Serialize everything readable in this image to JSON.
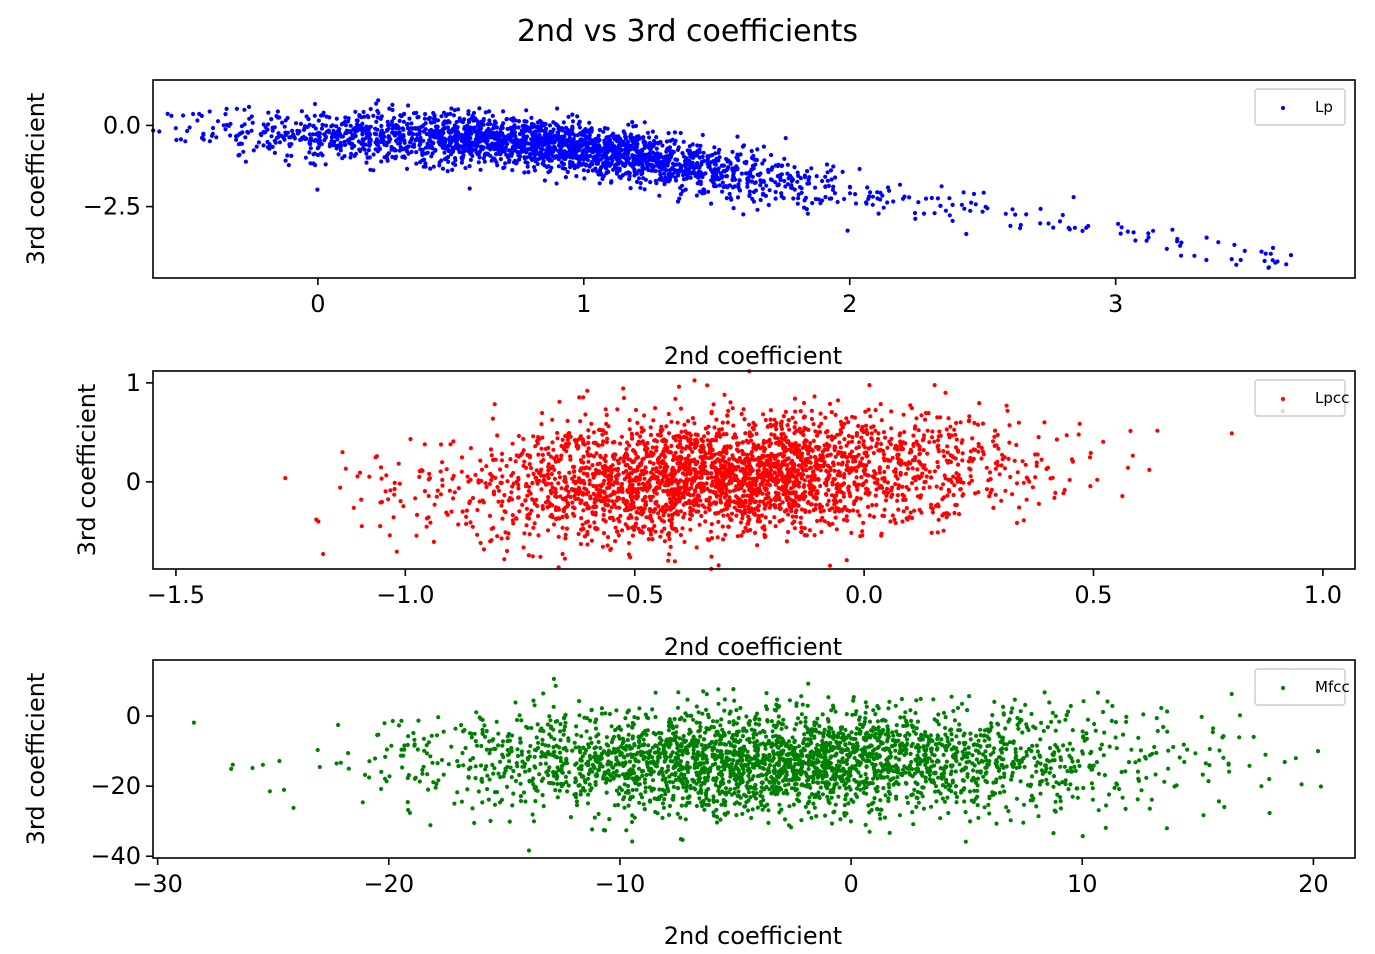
{
  "suptitle": "2nd vs 3rd coefficients",
  "chart_data": [
    {
      "type": "scatter",
      "series_name": "Lp",
      "color": "#0000ff",
      "xlabel": "2nd coefficient",
      "ylabel": "3rd coefficient",
      "xlim": [
        -0.62,
        3.9
      ],
      "ylim": [
        -4.7,
        1.4
      ],
      "xticks": [
        0,
        1,
        2,
        3
      ],
      "xtick_labels": [
        "0",
        "1",
        "2",
        "3"
      ],
      "yticks": [
        0.0,
        -2.5
      ],
      "ytick_labels": [
        "0.0",
        "−2.5"
      ],
      "legend": "top-right",
      "trend": [
        [
          -0.4,
          -0.1
        ],
        [
          0.0,
          -0.3
        ],
        [
          0.5,
          -0.35
        ],
        [
          1.0,
          -0.7
        ],
        [
          1.5,
          -1.4
        ],
        [
          2.0,
          -2.1
        ],
        [
          2.5,
          -2.6
        ],
        [
          3.0,
          -3.3
        ],
        [
          3.5,
          -3.9
        ],
        [
          3.7,
          -4.3
        ]
      ],
      "bulk": {
        "x_center": 0.85,
        "x_spread": 0.55,
        "y_spread": 0.4,
        "count": 2500
      },
      "sparse_tail": {
        "x_range": [
          2.3,
          3.7
        ],
        "count": 70
      }
    },
    {
      "type": "scatter",
      "series_name": "Lpcc",
      "color": "#ff0000",
      "xlabel": "2nd coefficient",
      "ylabel": "3rd coefficient",
      "xlim": [
        -1.55,
        1.07
      ],
      "ylim": [
        -0.88,
        1.12
      ],
      "xticks": [
        -1.5,
        -1.0,
        -0.5,
        0.0,
        0.5,
        1.0
      ],
      "xtick_labels": [
        "−1.5",
        "−1.0",
        "−0.5",
        "0.0",
        "0.5",
        "1.0"
      ],
      "yticks": [
        1,
        0
      ],
      "ytick_labels": [
        "1",
        "0"
      ],
      "legend": "top-right",
      "bulk": {
        "x_center": -0.3,
        "x_spread": 0.3,
        "y_center": 0.05,
        "y_spread": 0.3,
        "y_slope": 0.2,
        "count": 3000
      }
    },
    {
      "type": "scatter",
      "series_name": "Mfcc",
      "color": "#008000",
      "xlabel": "2nd coefficient",
      "ylabel": "3rd coefficient",
      "xlim": [
        -30.2,
        21.8
      ],
      "ylim": [
        -40.5,
        16
      ],
      "xticks": [
        -30,
        -20,
        -10,
        0,
        10,
        20
      ],
      "xtick_labels": [
        "−30",
        "−20",
        "−10",
        "0",
        "10",
        "20"
      ],
      "yticks": [
        0,
        -20,
        -40
      ],
      "ytick_labels": [
        "0",
        "−20",
        "−40"
      ],
      "legend": "top-right",
      "bulk": {
        "x_center": -3.0,
        "x_spread": 7.5,
        "y_center": -13,
        "y_spread": 7.5,
        "count": 3000
      }
    }
  ]
}
